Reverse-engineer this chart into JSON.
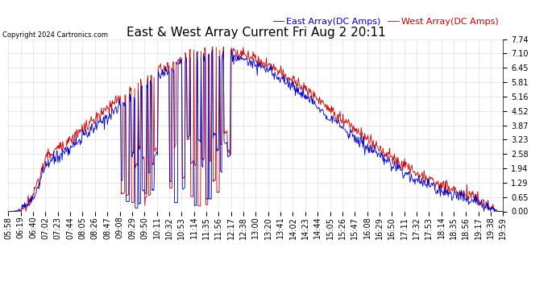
{
  "title": "East & West Array Current Fri Aug 2 20:11",
  "copyright": "Copyright 2024 Cartronics.com",
  "legend_east": "East Array(DC Amps)",
  "legend_west": "West Array(DC Amps)",
  "color_east": "#0000cc",
  "color_west": "#cc0000",
  "background_color": "#ffffff",
  "grid_color": "#bbbbbb",
  "yticks": [
    0.0,
    0.65,
    1.29,
    1.94,
    2.58,
    3.23,
    3.87,
    4.52,
    5.16,
    5.81,
    6.45,
    7.1,
    7.74
  ],
  "ylim": [
    0.0,
    7.74
  ],
  "x_labels": [
    "05:58",
    "06:19",
    "06:40",
    "07:02",
    "07:23",
    "07:44",
    "08:05",
    "08:26",
    "08:47",
    "09:08",
    "09:29",
    "09:50",
    "10:11",
    "10:32",
    "10:53",
    "11:14",
    "11:35",
    "11:56",
    "12:17",
    "12:38",
    "13:00",
    "13:20",
    "13:41",
    "14:02",
    "14:23",
    "14:44",
    "15:05",
    "15:26",
    "15:47",
    "16:08",
    "16:29",
    "16:50",
    "17:11",
    "17:32",
    "17:53",
    "18:14",
    "18:35",
    "18:56",
    "19:17",
    "19:38",
    "19:59"
  ],
  "n_points": 820,
  "title_fontsize": 11,
  "legend_fontsize": 8,
  "tick_fontsize": 7,
  "linewidth": 0.6
}
